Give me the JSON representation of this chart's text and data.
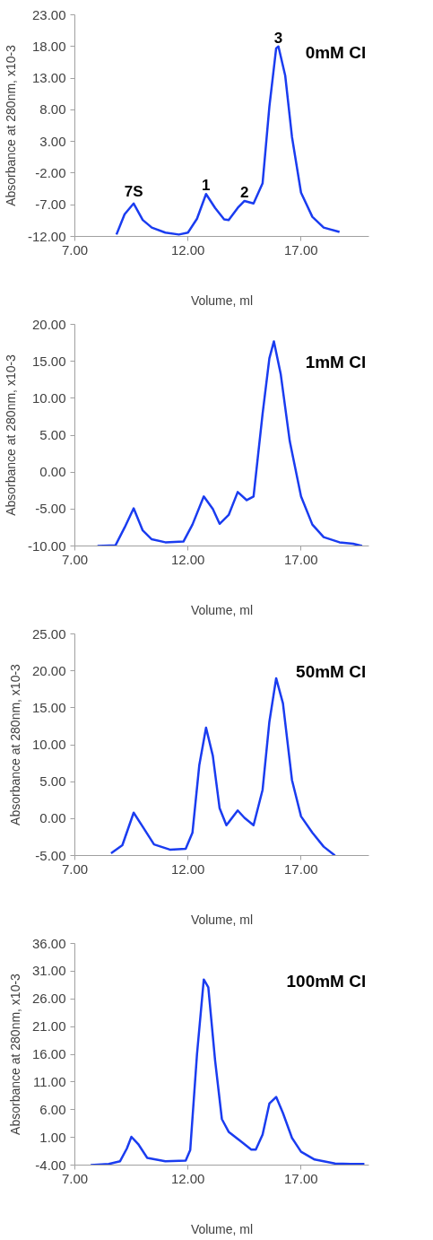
{
  "chart_data": [
    {
      "type": "line",
      "title": "0mM Cl",
      "xlabel": "Volume, ml",
      "ylabel": "Absorbance at 280nm, x10-3",
      "xlim": [
        7,
        20
      ],
      "xticks": [
        {
          "value": 7,
          "label": "7.00"
        },
        {
          "value": 12,
          "label": "12.00"
        },
        {
          "value": 17,
          "label": "17.00"
        }
      ],
      "ylim": [
        -12,
        23
      ],
      "yticks": [
        {
          "value": -12,
          "label": "-12.00"
        },
        {
          "value": -7,
          "label": "-7.00"
        },
        {
          "value": -2,
          "label": "-2.00"
        },
        {
          "value": 3,
          "label": "3.00"
        },
        {
          "value": 8,
          "label": "8.00"
        },
        {
          "value": 13,
          "label": "13.00"
        },
        {
          "value": 18,
          "label": "18.00"
        },
        {
          "value": 23,
          "label": "23.00"
        }
      ],
      "grid": false,
      "marker": "none",
      "line_style": "solid",
      "annotations": [
        {
          "text": "7S",
          "x": 9.6,
          "y": -6.8
        },
        {
          "text": "1",
          "x": 12.8,
          "y": -5.3
        },
        {
          "text": "2",
          "x": 14.5,
          "y": -6.4
        },
        {
          "text": "3",
          "x": 16.0,
          "y": 18.0
        }
      ],
      "series": [
        {
          "color": "#1a3cf0",
          "x": [
            8.84,
            9.2,
            9.6,
            10.0,
            10.4,
            11.0,
            11.6,
            12.0,
            12.4,
            12.8,
            13.2,
            13.6,
            13.8,
            14.2,
            14.5,
            14.9,
            15.3,
            15.6,
            15.9,
            16.0,
            16.3,
            16.6,
            17.0,
            17.5,
            18.0,
            18.7
          ],
          "values": [
            -11.7,
            -8.5,
            -6.8,
            -9.4,
            -10.6,
            -11.4,
            -11.7,
            -11.4,
            -9.2,
            -5.3,
            -7.5,
            -9.3,
            -9.4,
            -7.5,
            -6.4,
            -6.8,
            -3.6,
            8.5,
            17.7,
            18.0,
            13.4,
            3.7,
            -5.1,
            -8.9,
            -10.6,
            -11.3
          ]
        }
      ]
    },
    {
      "type": "line",
      "title": "1mM Cl",
      "xlabel": "Volume, ml",
      "ylabel": "Absorbance at 280nm, x10-3",
      "xlim": [
        7,
        20
      ],
      "xticks": [
        {
          "value": 7,
          "label": "7.00"
        },
        {
          "value": 12,
          "label": "12.00"
        },
        {
          "value": 17,
          "label": "17.00"
        }
      ],
      "ylim": [
        -10,
        20
      ],
      "yticks": [
        {
          "value": -10,
          "label": "-10.00"
        },
        {
          "value": -5,
          "label": "-5.00"
        },
        {
          "value": 0,
          "label": "0.00"
        },
        {
          "value": 5,
          "label": "5.00"
        },
        {
          "value": 10,
          "label": "10.00"
        },
        {
          "value": 15,
          "label": "15.00"
        },
        {
          "value": 20,
          "label": "20.00"
        }
      ],
      "grid": false,
      "marker": "none",
      "line_style": "solid",
      "series": [
        {
          "color": "#1a3cf0",
          "x": [
            8.0,
            8.8,
            9.2,
            9.6,
            10.0,
            10.4,
            11.0,
            11.8,
            12.2,
            12.7,
            13.1,
            13.4,
            13.8,
            14.2,
            14.6,
            14.9,
            15.3,
            15.6,
            15.8,
            16.1,
            16.5,
            17.0,
            17.5,
            18.0,
            18.7,
            19.3,
            19.7
          ],
          "values": [
            -10.0,
            -9.9,
            -7.5,
            -4.9,
            -7.9,
            -9.1,
            -9.5,
            -9.4,
            -7.1,
            -3.3,
            -5.0,
            -7.0,
            -5.8,
            -2.7,
            -3.8,
            -3.3,
            7.9,
            15.4,
            17.7,
            13.3,
            4.2,
            -3.3,
            -7.1,
            -8.8,
            -9.5,
            -9.7,
            -10.0
          ]
        }
      ]
    },
    {
      "type": "line",
      "title": "50mM Cl",
      "xlabel": "Volume, ml",
      "ylabel": "Absorbance at 280nm, x10-3",
      "xlim": [
        7,
        20
      ],
      "xticks": [
        {
          "value": 7,
          "label": "7.00"
        },
        {
          "value": 12,
          "label": "12.00"
        },
        {
          "value": 17,
          "label": "17.00"
        }
      ],
      "ylim": [
        -5,
        25
      ],
      "yticks": [
        {
          "value": -5,
          "label": "-5.00"
        },
        {
          "value": 0,
          "label": "0.00"
        },
        {
          "value": 5,
          "label": "5.00"
        },
        {
          "value": 10,
          "label": "10.00"
        },
        {
          "value": 15,
          "label": "15.00"
        },
        {
          "value": 20,
          "label": "20.00"
        },
        {
          "value": 25,
          "label": "25.00"
        }
      ],
      "grid": false,
      "marker": "none",
      "line_style": "solid",
      "series": [
        {
          "color": "#1a3cf0",
          "x": [
            8.6,
            9.1,
            9.6,
            10.0,
            10.5,
            11.2,
            11.9,
            12.2,
            12.5,
            12.8,
            13.1,
            13.4,
            13.7,
            14.2,
            14.5,
            14.9,
            15.3,
            15.6,
            15.9,
            16.2,
            16.6,
            17.0,
            17.5,
            18.0,
            18.5
          ],
          "values": [
            -4.7,
            -3.6,
            0.8,
            -1.1,
            -3.5,
            -4.2,
            -4.1,
            -1.9,
            7.2,
            12.3,
            8.5,
            1.4,
            -0.9,
            1.1,
            0.1,
            -0.9,
            3.9,
            13.1,
            19.0,
            15.6,
            5.2,
            0.3,
            -1.9,
            -3.8,
            -5.0
          ]
        }
      ]
    },
    {
      "type": "line",
      "title": "100mM Cl",
      "xlabel": "Volume, ml",
      "ylabel": "Absorbance at 280nm, x10-3",
      "xlim": [
        7,
        20
      ],
      "xticks": [
        {
          "value": 7,
          "label": "7.00"
        },
        {
          "value": 12,
          "label": "12.00"
        },
        {
          "value": 17,
          "label": "17.00"
        }
      ],
      "ylim": [
        -4,
        36
      ],
      "yticks": [
        {
          "value": -4,
          "label": "-4.00"
        },
        {
          "value": 1,
          "label": "1.00"
        },
        {
          "value": 6,
          "label": "6.00"
        },
        {
          "value": 11,
          "label": "11.00"
        },
        {
          "value": 16,
          "label": "16.00"
        },
        {
          "value": 21,
          "label": "21.00"
        },
        {
          "value": 26,
          "label": "26.00"
        },
        {
          "value": 31,
          "label": "31.00"
        },
        {
          "value": 36,
          "label": "36.00"
        }
      ],
      "grid": false,
      "marker": "none",
      "line_style": "solid",
      "series": [
        {
          "color": "#1a3cf0",
          "x": [
            7.7,
            8.5,
            9.0,
            9.3,
            9.5,
            9.8,
            10.2,
            11.0,
            11.9,
            12.1,
            12.4,
            12.7,
            12.9,
            13.2,
            13.5,
            13.8,
            14.3,
            14.8,
            15.0,
            15.3,
            15.6,
            15.9,
            16.2,
            16.6,
            17.0,
            17.6,
            18.5,
            19.2,
            19.8
          ],
          "values": [
            -4.0,
            -3.8,
            -3.3,
            -1.0,
            1.1,
            -0.2,
            -2.7,
            -3.3,
            -3.2,
            -1.3,
            16.0,
            29.5,
            28.1,
            14.9,
            4.3,
            2.0,
            0.4,
            -1.2,
            -1.2,
            1.5,
            7.1,
            8.3,
            5.4,
            0.9,
            -1.6,
            -3.0,
            -3.7,
            -3.8,
            -3.8
          ]
        }
      ]
    }
  ]
}
